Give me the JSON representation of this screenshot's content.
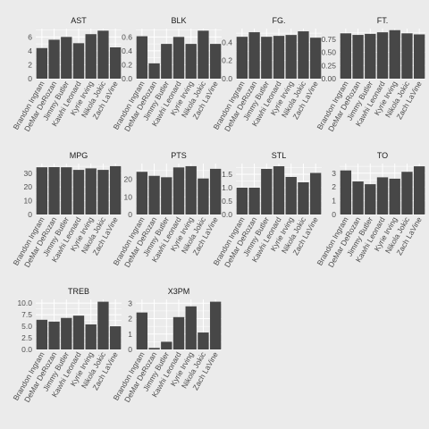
{
  "chart_data": {
    "type": "bar",
    "layout": "facet_wrap",
    "facet_columns": 4,
    "categories": [
      "Brandon Ingram",
      "DeMar DeRozan",
      "Jimmy Butler",
      "Kawhi Leonard",
      "Kyrie Irving",
      "Nikola Jokic",
      "Zach LaVine"
    ],
    "bar_color": "#474747",
    "panel_color": "#ebebeb",
    "grid_color": "#ffffff",
    "grid": true,
    "panels": [
      {
        "title": "AST",
        "values": [
          4.4,
          5.6,
          6.0,
          5.1,
          6.4,
          6.9,
          4.5
        ],
        "ylim": [
          0,
          7.2
        ],
        "ticks": [
          0,
          2,
          4,
          6
        ],
        "tick_labels": [
          "0",
          "2",
          "4",
          "6"
        ]
      },
      {
        "title": "BLK",
        "values": [
          0.61,
          0.22,
          0.5,
          0.6,
          0.5,
          0.69,
          0.5
        ],
        "ylim": [
          0,
          0.72
        ],
        "ticks": [
          0,
          0.2,
          0.4,
          0.6
        ],
        "tick_labels": [
          "0.0",
          "0.2",
          "0.4",
          "0.6"
        ]
      },
      {
        "title": "FG.",
        "values": [
          0.46,
          0.51,
          0.46,
          0.47,
          0.48,
          0.52,
          0.45
        ],
        "ylim": [
          0,
          0.55
        ],
        "ticks": [
          0,
          0.2,
          0.4
        ],
        "tick_labels": [
          "0.0",
          "0.2",
          "0.4"
        ]
      },
      {
        "title": "FT.",
        "values": [
          0.86,
          0.83,
          0.85,
          0.88,
          0.92,
          0.86,
          0.84
        ],
        "ylim": [
          0,
          0.95
        ],
        "ticks": [
          0,
          0.25,
          0.5,
          0.75
        ],
        "tick_labels": [
          "0.00",
          "0.25",
          "0.50",
          "0.75"
        ]
      },
      {
        "title": "MPG",
        "values": [
          34.3,
          34.4,
          34.3,
          32.4,
          33.5,
          32.4,
          35.1
        ],
        "ylim": [
          0,
          37
        ],
        "ticks": [
          0,
          10,
          20,
          30
        ],
        "tick_labels": [
          "0",
          "10",
          "20",
          "30"
        ]
      },
      {
        "title": "PTS",
        "values": [
          24.3,
          22.0,
          21.2,
          26.8,
          27.5,
          20.5,
          26.0
        ],
        "ylim": [
          0,
          29
        ],
        "ticks": [
          0,
          10,
          20
        ],
        "tick_labels": [
          "0",
          "10",
          "20"
        ]
      },
      {
        "title": "STL",
        "values": [
          1.0,
          1.0,
          1.7,
          1.8,
          1.4,
          1.2,
          1.55
        ],
        "ylim": [
          0,
          1.9
        ],
        "ticks": [
          0,
          0.5,
          1.0,
          1.5
        ],
        "tick_labels": [
          "0.0",
          "0.5",
          "1.0",
          "1.5"
        ]
      },
      {
        "title": "TO",
        "values": [
          3.2,
          2.4,
          2.2,
          2.7,
          2.6,
          3.1,
          3.5
        ],
        "ylim": [
          0,
          3.7
        ],
        "ticks": [
          0,
          1,
          2,
          3
        ],
        "tick_labels": [
          "0",
          "1",
          "2",
          "3"
        ]
      },
      {
        "title": "TREB",
        "values": [
          6.4,
          6.0,
          6.8,
          7.3,
          5.4,
          10.3,
          5.0
        ],
        "ylim": [
          0,
          10.8
        ],
        "ticks": [
          0,
          2.5,
          5,
          7.5,
          10
        ],
        "tick_labels": [
          "0.0",
          "2.5",
          "5.0",
          "7.5",
          "10.0"
        ]
      },
      {
        "title": "X3PM",
        "values": [
          2.4,
          0.1,
          0.5,
          2.1,
          2.8,
          1.1,
          3.1
        ],
        "ylim": [
          0,
          3.25
        ],
        "ticks": [
          0,
          1,
          2,
          3
        ],
        "tick_labels": [
          "0",
          "1",
          "2",
          "3"
        ]
      }
    ]
  }
}
